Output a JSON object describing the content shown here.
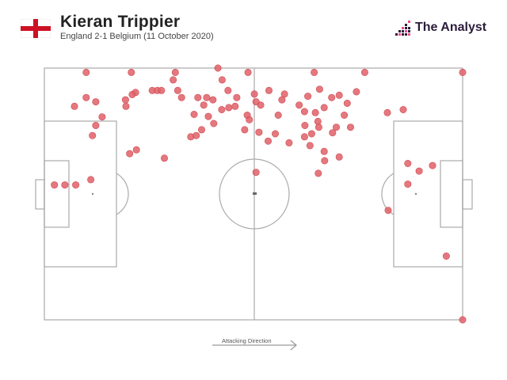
{
  "header": {
    "title": "Kieran Trippier",
    "subtitle": "England 2-1 Belgium (11 October 2020)",
    "flag_icon": "england-flag-icon",
    "brand": "The Analyst",
    "brand_icon": "the-analyst-logo-icon"
  },
  "colors": {
    "point": "#e06068",
    "point_stroke": "#d04850",
    "pitch_lines": "#aaaaaa",
    "flag_red": "#ce1124",
    "brand": "#2b1d3a"
  },
  "footer": {
    "attacking_direction_label": "Attacking Direction",
    "arrow_icon": "right-arrow-icon"
  },
  "chart_data": {
    "type": "scatter",
    "title": "Kieran Trippier",
    "subtitle": "England 2-1 Belgium (11 October 2020)",
    "xlabel": "",
    "ylabel": "",
    "xlim": [
      0,
      100
    ],
    "ylim": [
      0,
      100
    ],
    "grid": false,
    "legend": "none",
    "points": [
      [
        10.0,
        98.3
      ],
      [
        20.8,
        98.3
      ],
      [
        30.8,
        95.3
      ],
      [
        31.3,
        98.3
      ],
      [
        41.5,
        100.0
      ],
      [
        42.5,
        95.3
      ],
      [
        48.7,
        98.3
      ],
      [
        64.5,
        98.3
      ],
      [
        76.6,
        98.3
      ],
      [
        100.0,
        98.3
      ],
      [
        10.0,
        88.3
      ],
      [
        12.3,
        86.6
      ],
      [
        19.4,
        87.4
      ],
      [
        21.8,
        90.3
      ],
      [
        25.8,
        91.1
      ],
      [
        27.0,
        91.1
      ],
      [
        28.0,
        91.1
      ],
      [
        31.9,
        91.1
      ],
      [
        32.8,
        88.3
      ],
      [
        36.7,
        88.3
      ],
      [
        38.1,
        85.3
      ],
      [
        38.8,
        88.3
      ],
      [
        43.9,
        91.1
      ],
      [
        46.0,
        88.3
      ],
      [
        45.6,
        84.8
      ],
      [
        44.1,
        84.3
      ],
      [
        42.4,
        83.5
      ],
      [
        40.3,
        87.4
      ],
      [
        50.2,
        89.7
      ],
      [
        53.7,
        91.1
      ],
      [
        56.8,
        87.4
      ],
      [
        57.4,
        89.7
      ],
      [
        63.0,
        88.8
      ],
      [
        68.7,
        88.3
      ],
      [
        65.8,
        91.6
      ],
      [
        66.9,
        84.3
      ],
      [
        70.5,
        89.2
      ],
      [
        72.4,
        86.0
      ],
      [
        71.7,
        81.3
      ],
      [
        69.8,
        76.5
      ],
      [
        64.8,
        82.3
      ],
      [
        62.2,
        82.7
      ],
      [
        60.9,
        85.3
      ],
      [
        51.7,
        85.3
      ],
      [
        50.6,
        86.6
      ],
      [
        55.9,
        81.3
      ],
      [
        48.5,
        81.3
      ],
      [
        49.0,
        79.5
      ],
      [
        51.3,
        74.5
      ],
      [
        47.9,
        75.5
      ],
      [
        40.5,
        78.0
      ],
      [
        39.2,
        80.8
      ],
      [
        37.6,
        75.5
      ],
      [
        35.8,
        81.6
      ],
      [
        7.2,
        84.8
      ],
      [
        12.3,
        77.2
      ],
      [
        13.8,
        80.6
      ],
      [
        11.5,
        73.2
      ],
      [
        19.5,
        84.8
      ],
      [
        21.0,
        89.5
      ],
      [
        22.0,
        67.5
      ],
      [
        20.4,
        66.0
      ],
      [
        28.7,
        64.2
      ],
      [
        35.0,
        72.7
      ],
      [
        36.3,
        73.2
      ],
      [
        53.5,
        71.0
      ],
      [
        50.6,
        58.6
      ],
      [
        55.2,
        73.9
      ],
      [
        58.5,
        70.3
      ],
      [
        62.2,
        72.7
      ],
      [
        63.9,
        73.9
      ],
      [
        63.5,
        69.2
      ],
      [
        66.9,
        66.9
      ],
      [
        68.9,
        74.3
      ],
      [
        62.3,
        77.2
      ],
      [
        65.4,
        78.8
      ],
      [
        65.6,
        76.5
      ],
      [
        82.0,
        82.3
      ],
      [
        85.8,
        83.5
      ],
      [
        74.6,
        90.6
      ],
      [
        73.2,
        76.5
      ],
      [
        70.5,
        64.7
      ],
      [
        67.0,
        63.2
      ],
      [
        65.5,
        58.2
      ],
      [
        86.9,
        62.1
      ],
      [
        89.6,
        59.1
      ],
      [
        92.8,
        61.3
      ],
      [
        86.9,
        53.9
      ],
      [
        82.2,
        43.5
      ],
      [
        7.5,
        53.6
      ],
      [
        4.9,
        53.6
      ],
      [
        2.4,
        53.6
      ],
      [
        11.1,
        55.7
      ],
      [
        96.1,
        25.3
      ],
      [
        100.0,
        0.0
      ]
    ]
  }
}
